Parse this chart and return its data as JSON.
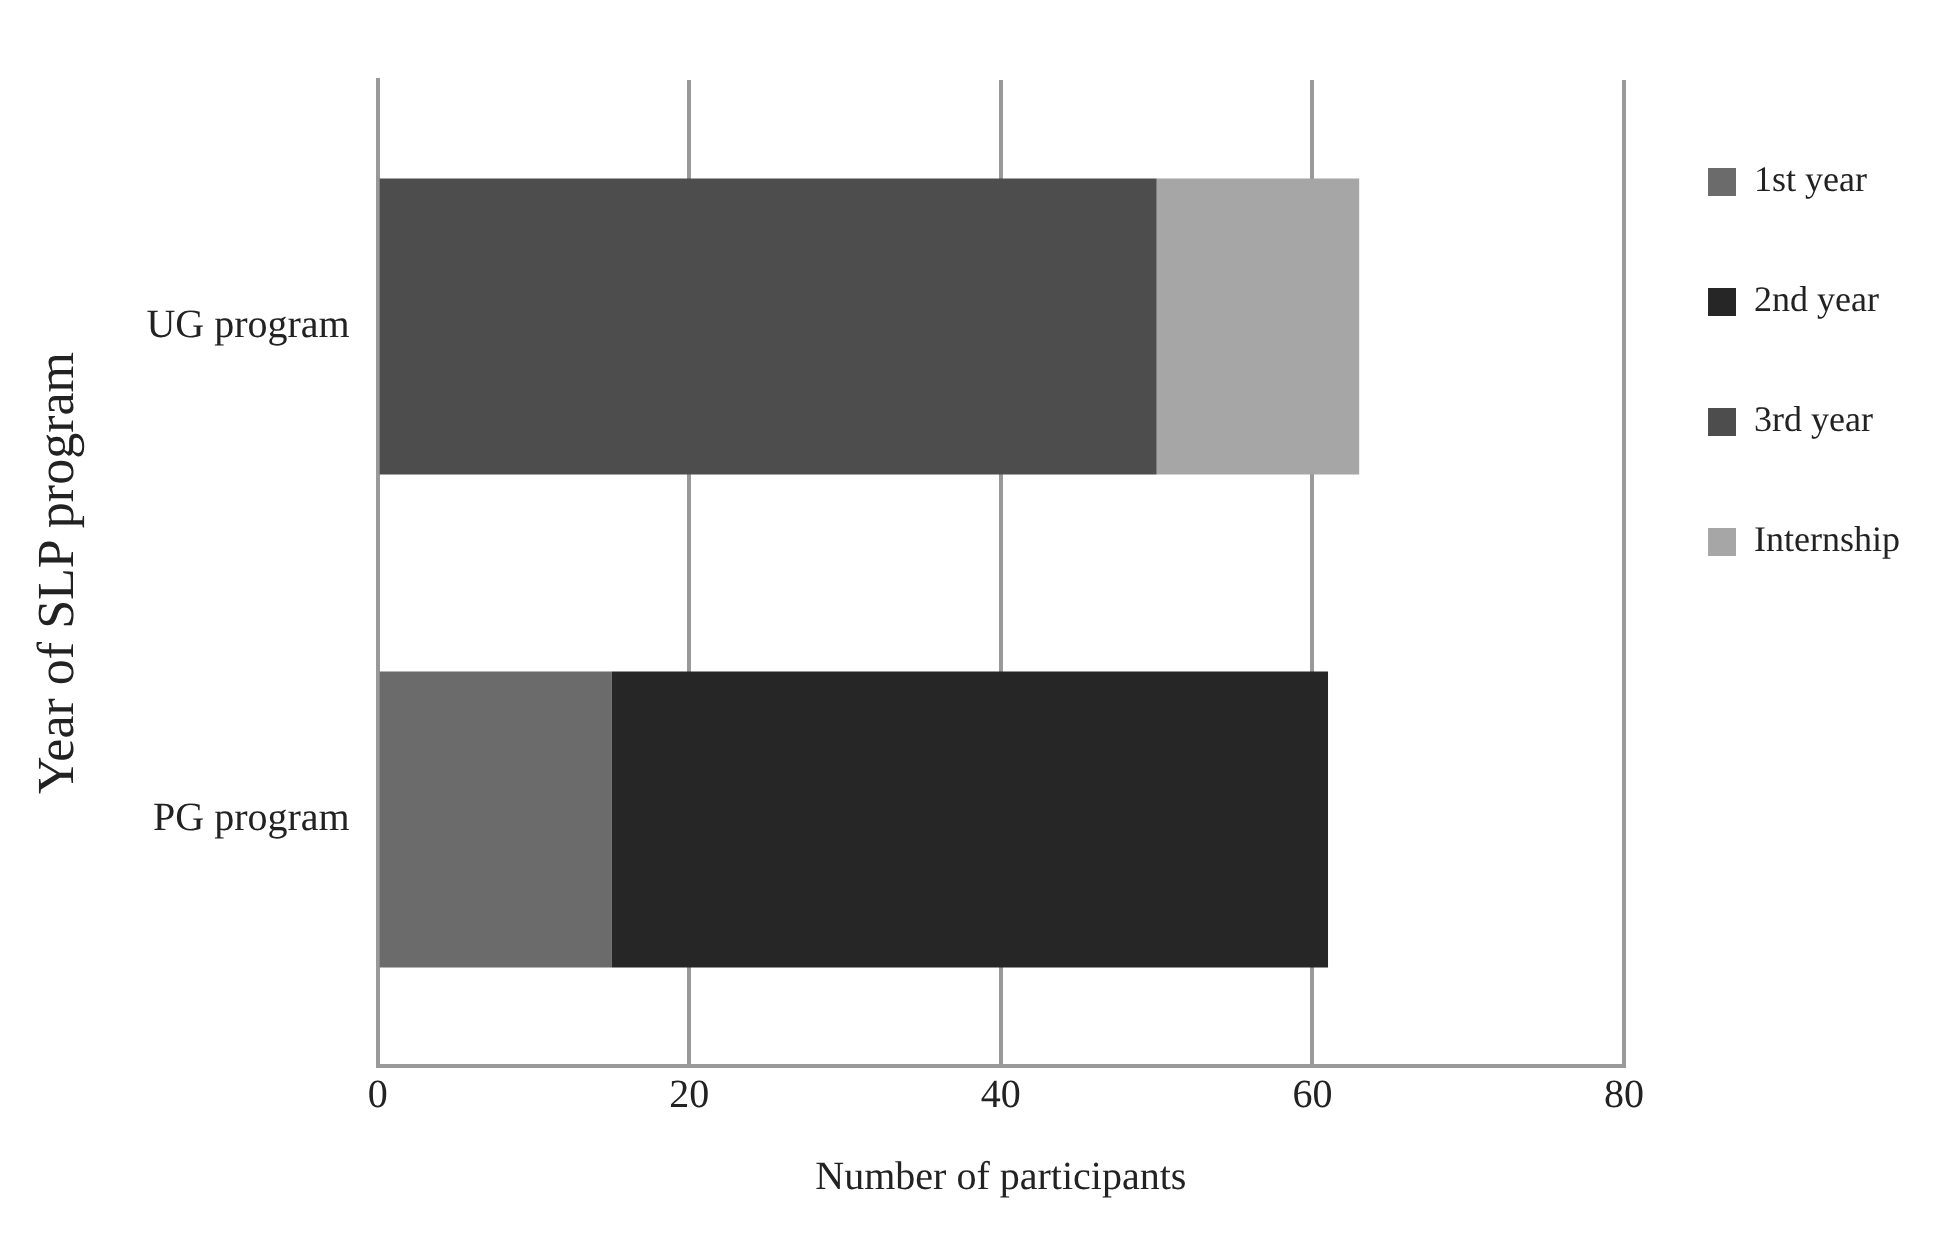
{
  "chart_data": {
    "type": "bar",
    "orientation": "horizontal",
    "stacked": true,
    "xlabel": "Number of participants",
    "ylabel": "Year of SLP program",
    "categories": [
      "UG program",
      "PG program"
    ],
    "series": [
      {
        "name": "1st year",
        "color": "#6b6b6b",
        "values": [
          null,
          15
        ]
      },
      {
        "name": "2nd year",
        "color": "#262626",
        "values": [
          null,
          46
        ]
      },
      {
        "name": "3rd year",
        "color": "#4d4d4d",
        "values": [
          50,
          null
        ]
      },
      {
        "name": "Internship",
        "color": "#a6a6a6",
        "values": [
          13,
          null
        ]
      }
    ],
    "xlim": [
      0,
      80
    ],
    "xticks": [
      0,
      20,
      40,
      60,
      80
    ],
    "grid": "x",
    "legend": "right"
  }
}
